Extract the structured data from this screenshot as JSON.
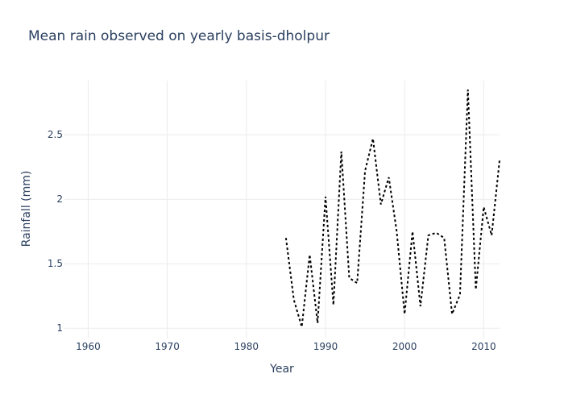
{
  "chart_data": {
    "type": "line",
    "title": "Mean rain observed on yearly basis-dholpur",
    "xlabel": "Year",
    "ylabel": "Rainfall (mm)",
    "xlim": [
      1957,
      2012
    ],
    "ylim": [
      0.92,
      2.92
    ],
    "xticks": [
      1960,
      1970,
      1980,
      1990,
      2000,
      2010
    ],
    "yticks": [
      1,
      1.5,
      2,
      2.5
    ],
    "ytick_labels": [
      "1",
      "1.5",
      "2",
      "2.5"
    ],
    "grid": true,
    "series": [
      {
        "name": "Rainfall",
        "line_style": "dotted",
        "color": "#000000",
        "x": [
          1985,
          1986,
          1987,
          1988,
          1989,
          1990,
          1991,
          1992,
          1993,
          1994,
          1995,
          1996,
          1997,
          1998,
          1999,
          2000,
          2001,
          2002,
          2003,
          2004,
          2005,
          2006,
          2007,
          2008,
          2009,
          2010,
          2011,
          2012
        ],
        "y": [
          1.7,
          1.22,
          1.01,
          1.57,
          1.04,
          2.02,
          1.18,
          2.37,
          1.39,
          1.35,
          2.22,
          2.47,
          1.96,
          2.17,
          1.75,
          1.11,
          1.75,
          1.17,
          1.72,
          1.74,
          1.7,
          1.11,
          1.26,
          2.85,
          1.3,
          1.94,
          1.72,
          2.3
        ]
      }
    ]
  }
}
